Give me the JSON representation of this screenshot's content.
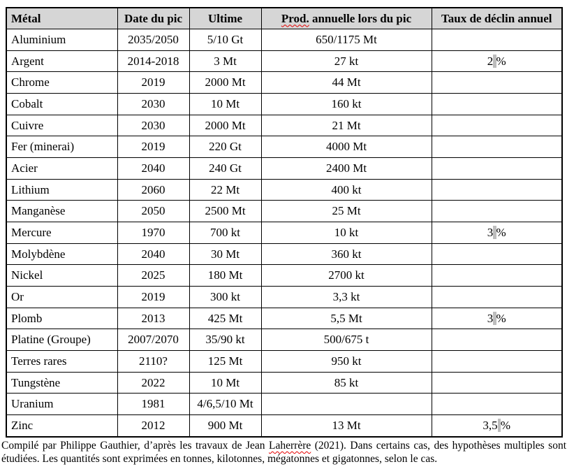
{
  "colors": {
    "header_bg": "#d6d6d6",
    "border": "#000000",
    "nbsp_highlight": "#bdbdbd",
    "spellcheck_underline": "#e60000",
    "page_background": "#ffffff"
  },
  "table": {
    "headers": [
      "Métal",
      "Date du pic",
      "Ultime",
      "Prod. annuelle lors du pic",
      "Taux de déclin annuel"
    ],
    "spellcheck_words": [
      "Prod.",
      "Laherrère"
    ],
    "rows": [
      [
        "Aluminium",
        "2035/2050",
        "5/10 Gt",
        "650/1175 Mt",
        ""
      ],
      [
        "Argent",
        "2014-2018",
        "3 Mt",
        "27 kt",
        "2 %"
      ],
      [
        "Chrome",
        "2019",
        "2000 Mt",
        "44 Mt",
        ""
      ],
      [
        "Cobalt",
        "2030",
        "10 Mt",
        "160 kt",
        ""
      ],
      [
        "Cuivre",
        "2030",
        "2000 Mt",
        "21 Mt",
        ""
      ],
      [
        "Fer (minerai)",
        "2019",
        "220 Gt",
        "4000 Mt",
        ""
      ],
      [
        "Acier",
        "2040",
        "240 Gt",
        "2400 Mt",
        ""
      ],
      [
        "Lithium",
        "2060",
        "22 Mt",
        "400 kt",
        ""
      ],
      [
        "Manganèse",
        "2050",
        "2500 Mt",
        "25 Mt",
        ""
      ],
      [
        "Mercure",
        "1970",
        "700 kt",
        "10 kt",
        "3 %"
      ],
      [
        "Molybdène",
        "2040",
        "30 Mt",
        "360 kt",
        ""
      ],
      [
        "Nickel",
        "2025",
        "180 Mt",
        "2700 kt",
        ""
      ],
      [
        "Or",
        "2019",
        "300 kt",
        "3,3 kt",
        ""
      ],
      [
        "Plomb",
        "2013",
        "425 Mt",
        "5,5 Mt",
        "3 %"
      ],
      [
        "Platine (Groupe)",
        "2007/2070",
        "35/90 kt",
        "500/675 t",
        ""
      ],
      [
        "Terres rares",
        "2110?",
        "125 Mt",
        "950 kt",
        ""
      ],
      [
        "Tungstène",
        "2022",
        "10 Mt",
        "85 kt",
        ""
      ],
      [
        "Uranium",
        "1981",
        "4/6,5/10 Mt",
        "",
        ""
      ],
      [
        "Zinc",
        "2012",
        "900 Mt",
        "13 Mt",
        "3,5 %"
      ]
    ]
  },
  "footer": {
    "text": "Compilé par Philippe Gauthier, d’après les travaux de Jean Laherrère (2021). Dans certains cas, des hypothèses multiples sont étudiées. Les quantités sont exprimées en tonnes, kilotonnes, mégatonnes et gigatonnes, selon le cas."
  }
}
